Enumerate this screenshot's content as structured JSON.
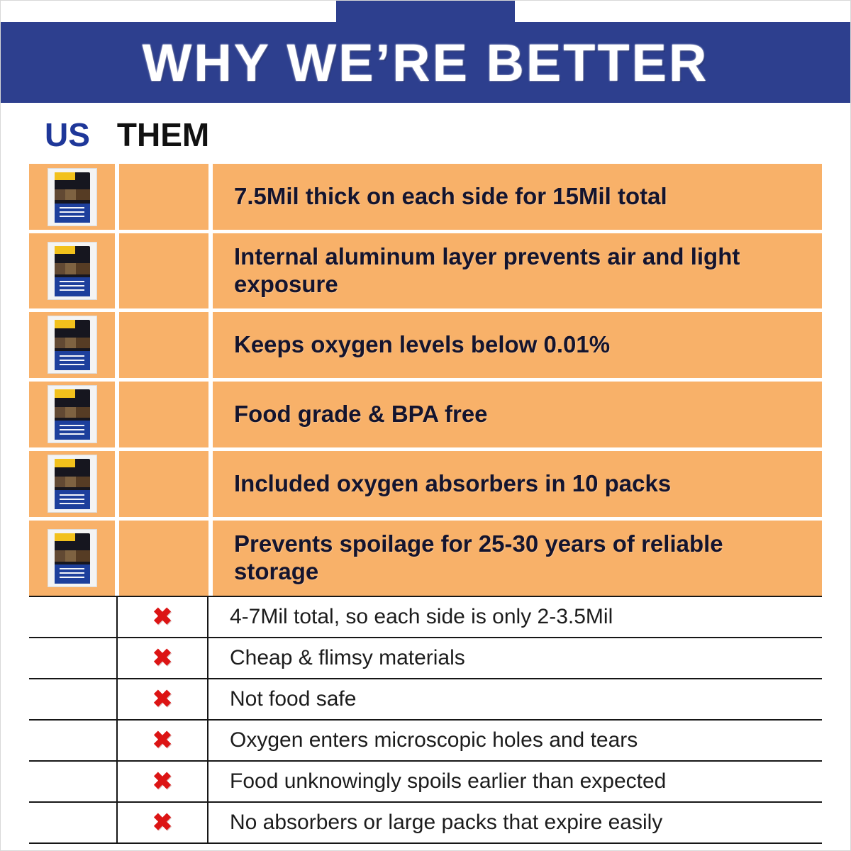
{
  "banner": {
    "title": "WHY WE’RE BETTER"
  },
  "columns": {
    "us": "US",
    "them": "THEM"
  },
  "icons": {
    "x_mark": "✖",
    "product_image": "mylar-bag-product-photo"
  },
  "colors": {
    "banner_bg": "#2d3f8e",
    "us_header_text": "#1e3799",
    "them_header_text": "#111111",
    "row_orange": "#f8b169",
    "x_red": "#dc1414"
  },
  "us_rows": [
    "7.5Mil thick on each side for 15Mil total",
    "Internal aluminum layer prevents air and light exposure",
    "Keeps oxygen levels below 0.01%",
    "Food grade & BPA free",
    "Included oxygen absorbers in 10 packs",
    "Prevents spoilage for 25-30 years of reliable storage"
  ],
  "them_rows": [
    "4-7Mil total, so each side is only 2-3.5Mil",
    "Cheap & flimsy materials",
    "Not food safe",
    "Oxygen enters microscopic holes and tears",
    "Food unknowingly spoils earlier than expected",
    "No absorbers or large packs that expire easily"
  ]
}
